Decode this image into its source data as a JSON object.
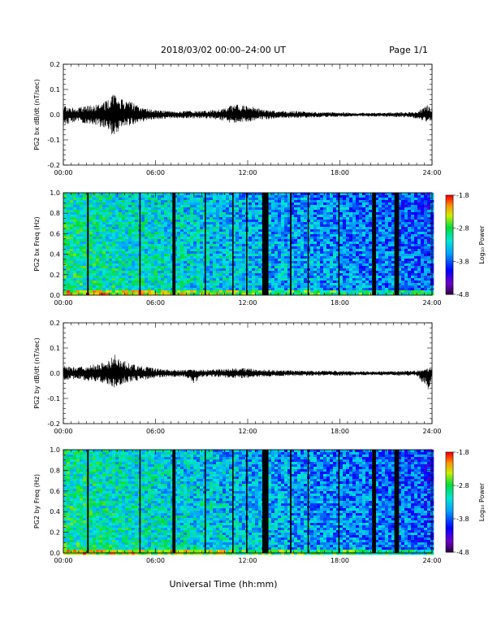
{
  "header": {
    "title": "2018/03/02  00:00–24:00 UT",
    "page": "Page 1/1"
  },
  "x_axis": {
    "title": "Universal Time (hh:mm)",
    "range_hours": [
      0,
      24
    ],
    "tick_hours": [
      0,
      6,
      12,
      18,
      24
    ],
    "tick_labels": [
      "00:00",
      "06:00",
      "12:00",
      "18:00",
      "24:00"
    ]
  },
  "colorbar": {
    "label": "Log₁₀ Power",
    "range": [
      -4.8,
      -1.8
    ],
    "tick_values": [
      -1.8,
      -2.8,
      -3.8,
      -4.8
    ],
    "tick_labels": [
      "-1.8",
      "-2.8",
      "-3.8",
      "-4.8"
    ]
  },
  "chart_data": [
    {
      "type": "line",
      "ylabel": "PG2 bx dB/dt (nT/sec)",
      "ylim": [
        -0.2,
        0.2
      ],
      "y_ticks": [
        -0.2,
        -0.1,
        0.0,
        0.1,
        0.2
      ],
      "y_tick_labels": [
        "-0.2",
        "-0.1",
        "0.0",
        "0.1",
        "0.2"
      ],
      "envelope": {
        "x_hours": [
          0,
          0.5,
          1,
          1.5,
          2,
          2.5,
          3,
          3.3,
          3.5,
          4,
          4.5,
          5,
          5.5,
          6,
          7,
          8,
          9,
          10,
          10.5,
          11,
          11.5,
          12,
          12.5,
          13,
          14,
          15,
          16,
          17,
          18,
          19,
          20,
          21,
          22,
          23,
          23.7,
          24
        ],
        "upper": [
          0.04,
          0.03,
          0.03,
          0.035,
          0.04,
          0.05,
          0.06,
          0.11,
          0.07,
          0.06,
          0.05,
          0.03,
          0.025,
          0.02,
          0.015,
          0.015,
          0.015,
          0.02,
          0.025,
          0.04,
          0.04,
          0.035,
          0.03,
          0.02,
          0.015,
          0.015,
          0.012,
          0.01,
          0.01,
          0.008,
          0.008,
          0.008,
          0.01,
          0.01,
          0.04,
          0.02
        ],
        "lower": [
          -0.05,
          -0.03,
          -0.03,
          -0.035,
          -0.04,
          -0.05,
          -0.06,
          -0.1,
          -0.07,
          -0.05,
          -0.04,
          -0.03,
          -0.025,
          -0.02,
          -0.015,
          -0.015,
          -0.015,
          -0.02,
          -0.025,
          -0.035,
          -0.03,
          -0.03,
          -0.025,
          -0.02,
          -0.015,
          -0.015,
          -0.012,
          -0.01,
          -0.01,
          -0.008,
          -0.008,
          -0.008,
          -0.01,
          -0.015,
          -0.03,
          -0.02
        ]
      }
    },
    {
      "type": "heatmap",
      "ylabel": "PG2 bx Freq (Hz)",
      "ylim": [
        0.0,
        1.0
      ],
      "y_ticks": [
        0.0,
        0.2,
        0.4,
        0.6,
        0.8,
        1.0
      ],
      "y_tick_labels": [
        "0.0",
        "0.2",
        "0.4",
        "0.6",
        "0.8",
        "1.0"
      ],
      "data_gaps_hours": [
        [
          1.55,
          1.65
        ],
        [
          4.95,
          5.0
        ],
        [
          7.1,
          7.3
        ],
        [
          9.2,
          9.25
        ],
        [
          11.0,
          11.08
        ],
        [
          11.9,
          11.95
        ],
        [
          12.95,
          13.35
        ],
        [
          14.75,
          14.85
        ],
        [
          15.9,
          15.95
        ],
        [
          17.9,
          17.95
        ],
        [
          20.1,
          20.35
        ],
        [
          21.55,
          21.85
        ]
      ]
    },
    {
      "type": "line",
      "ylabel": "PG2 by dB/dt (nT/sec)",
      "ylim": [
        -0.2,
        0.2
      ],
      "y_ticks": [
        -0.2,
        -0.1,
        0.0,
        0.1,
        0.2
      ],
      "y_tick_labels": [
        "-0.2",
        "-0.1",
        "0.0",
        "0.1",
        "0.2"
      ],
      "envelope": {
        "x_hours": [
          0,
          0.5,
          1,
          1.5,
          2,
          2.5,
          3,
          3.3,
          3.5,
          4,
          4.5,
          5,
          5.5,
          6,
          7,
          8,
          8.5,
          9,
          10,
          11,
          12,
          12.5,
          13,
          14,
          15,
          16,
          17,
          18,
          19,
          20,
          21,
          22,
          23,
          23.8,
          24
        ],
        "upper": [
          0.03,
          0.025,
          0.025,
          0.03,
          0.035,
          0.04,
          0.05,
          0.09,
          0.06,
          0.05,
          0.035,
          0.03,
          0.025,
          0.02,
          0.015,
          0.015,
          0.015,
          0.015,
          0.015,
          0.02,
          0.02,
          0.015,
          0.015,
          0.012,
          0.012,
          0.01,
          0.01,
          0.01,
          0.008,
          0.008,
          0.008,
          0.01,
          0.01,
          0.02,
          0.02
        ],
        "lower": [
          -0.03,
          -0.025,
          -0.025,
          -0.03,
          -0.035,
          -0.04,
          -0.05,
          -0.06,
          -0.05,
          -0.04,
          -0.035,
          -0.03,
          -0.025,
          -0.02,
          -0.015,
          -0.015,
          -0.04,
          -0.015,
          -0.015,
          -0.02,
          -0.02,
          -0.015,
          -0.015,
          -0.012,
          -0.012,
          -0.01,
          -0.01,
          -0.01,
          -0.008,
          -0.008,
          -0.008,
          -0.01,
          -0.01,
          -0.07,
          -0.02
        ]
      }
    },
    {
      "type": "heatmap",
      "ylabel": "PG2 by Freq (Hz)",
      "ylim": [
        0.0,
        1.0
      ],
      "y_ticks": [
        0.0,
        0.2,
        0.4,
        0.6,
        0.8,
        1.0
      ],
      "y_tick_labels": [
        "0.0",
        "0.2",
        "0.4",
        "0.6",
        "0.8",
        "1.0"
      ],
      "data_gaps_hours": [
        [
          1.55,
          1.65
        ],
        [
          4.95,
          5.0
        ],
        [
          7.1,
          7.3
        ],
        [
          9.2,
          9.25
        ],
        [
          11.0,
          11.08
        ],
        [
          11.9,
          11.95
        ],
        [
          12.95,
          13.35
        ],
        [
          14.75,
          14.85
        ],
        [
          15.9,
          15.95
        ],
        [
          17.9,
          17.95
        ],
        [
          20.1,
          20.35
        ],
        [
          21.55,
          21.85
        ]
      ]
    }
  ]
}
